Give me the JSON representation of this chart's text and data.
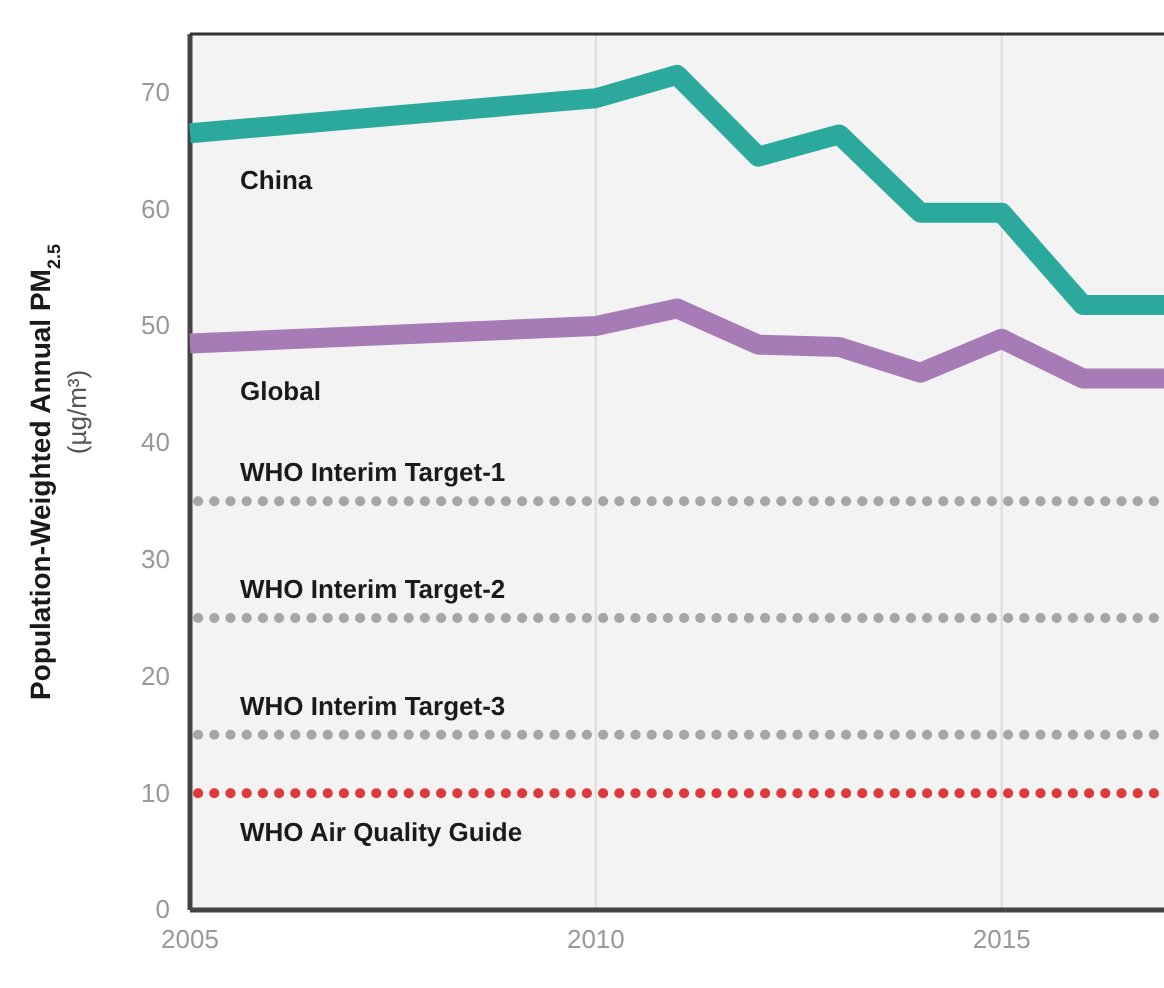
{
  "chart_data": {
    "type": "line",
    "ylabel": "Population-Weighted Annual PM$_{2.5}$ (µg/m³)",
    "x": [
      2005,
      2010,
      2011,
      2012,
      2013,
      2014,
      2015,
      2016,
      2017
    ],
    "series": [
      {
        "name": "China",
        "color": "#2ba99c",
        "values": [
          66.5,
          69.5,
          71.5,
          64.5,
          66.4,
          59.7,
          59.7,
          51.8,
          51.8
        ]
      },
      {
        "name": "Global",
        "color": "#a77bb6",
        "values": [
          48.5,
          50,
          51.5,
          48.4,
          48.2,
          46,
          48.9,
          45.5,
          45.5
        ]
      }
    ],
    "xlim": [
      2005,
      2017
    ],
    "xticks": [
      2005,
      2010,
      2015
    ],
    "ylim": [
      0,
      75
    ],
    "yticks": [
      0,
      10,
      20,
      30,
      40,
      50,
      60,
      70
    ],
    "grid": "x",
    "legend": false,
    "line_style": "solid",
    "marker": "none",
    "ref_lines": [
      {
        "axis": "y",
        "value": 35,
        "label": "WHO Interim Target-1",
        "color": "#a6a6a6",
        "line_style": "dotted"
      },
      {
        "axis": "y",
        "value": 25,
        "label": "WHO Interim Target-2",
        "color": "#a6a6a6",
        "line_style": "dotted"
      },
      {
        "axis": "y",
        "value": 15,
        "label": "WHO Interim Target-3",
        "color": "#a6a6a6",
        "line_style": "dotted"
      },
      {
        "axis": "y",
        "value": 10,
        "label": "WHO Air Quality Guide",
        "color": "#e0393b",
        "line_style": "dotted"
      }
    ]
  }
}
